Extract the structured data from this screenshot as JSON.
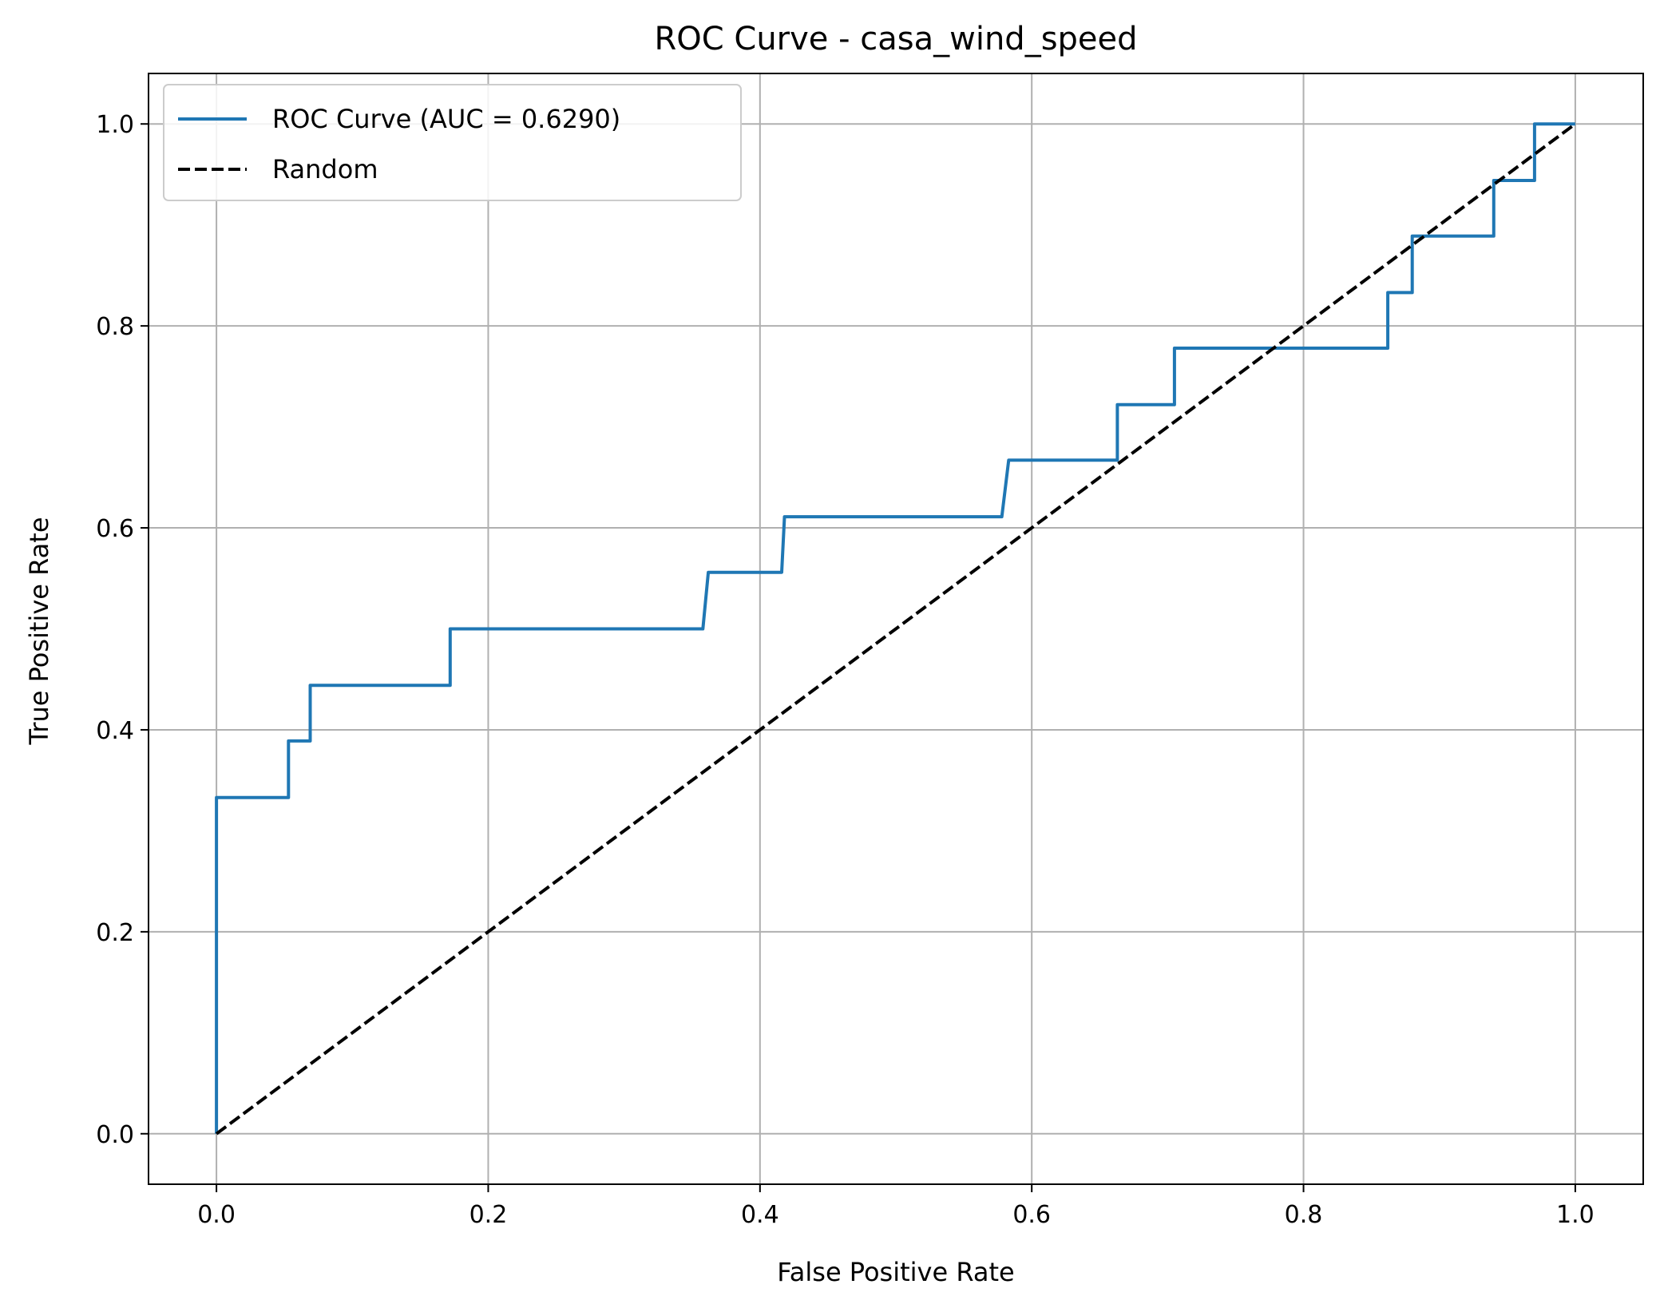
{
  "chart_data": {
    "type": "line",
    "title": "ROC Curve - casa_wind_speed",
    "xlabel": "False Positive Rate",
    "ylabel": "True Positive Rate",
    "xlim": [
      -0.05,
      1.05
    ],
    "ylim": [
      -0.05,
      1.05
    ],
    "xticks": [
      "0.0",
      "0.2",
      "0.4",
      "0.6",
      "0.8",
      "1.0"
    ],
    "yticks": [
      "0.0",
      "0.2",
      "0.4",
      "0.6",
      "0.8",
      "1.0"
    ],
    "grid": true,
    "legend_position": "upper-left",
    "series": [
      {
        "name": "ROC Curve (AUC = 0.6290)",
        "color": "#1f77b4",
        "style": "solid",
        "x": [
          0.0,
          0.0,
          0.053,
          0.053,
          0.069,
          0.069,
          0.172,
          0.172,
          0.358,
          0.362,
          0.416,
          0.418,
          0.578,
          0.583,
          0.663,
          0.663,
          0.705,
          0.705,
          0.862,
          0.862,
          0.88,
          0.88,
          0.94,
          0.94,
          0.97,
          0.97,
          1.0
        ],
        "y": [
          0.0,
          0.333,
          0.333,
          0.389,
          0.389,
          0.444,
          0.444,
          0.5,
          0.5,
          0.556,
          0.556,
          0.611,
          0.611,
          0.667,
          0.667,
          0.722,
          0.722,
          0.778,
          0.778,
          0.833,
          0.833,
          0.889,
          0.889,
          0.944,
          0.944,
          1.0,
          1.0
        ]
      },
      {
        "name": "Random",
        "color": "#000000",
        "style": "dashed",
        "x": [
          0.0,
          1.0
        ],
        "y": [
          0.0,
          1.0
        ]
      }
    ]
  }
}
